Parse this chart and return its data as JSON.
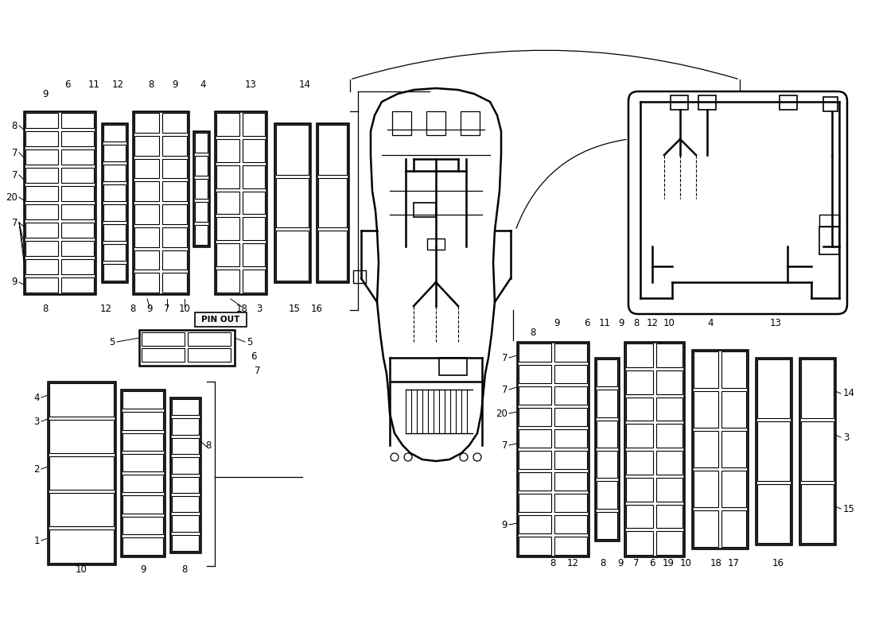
{
  "bg_color": "#ffffff",
  "lc": "#000000",
  "lw_main": 1.8,
  "lw_cell": 0.8,
  "lw_thin": 0.9,
  "fontsize_label": 8.5
}
